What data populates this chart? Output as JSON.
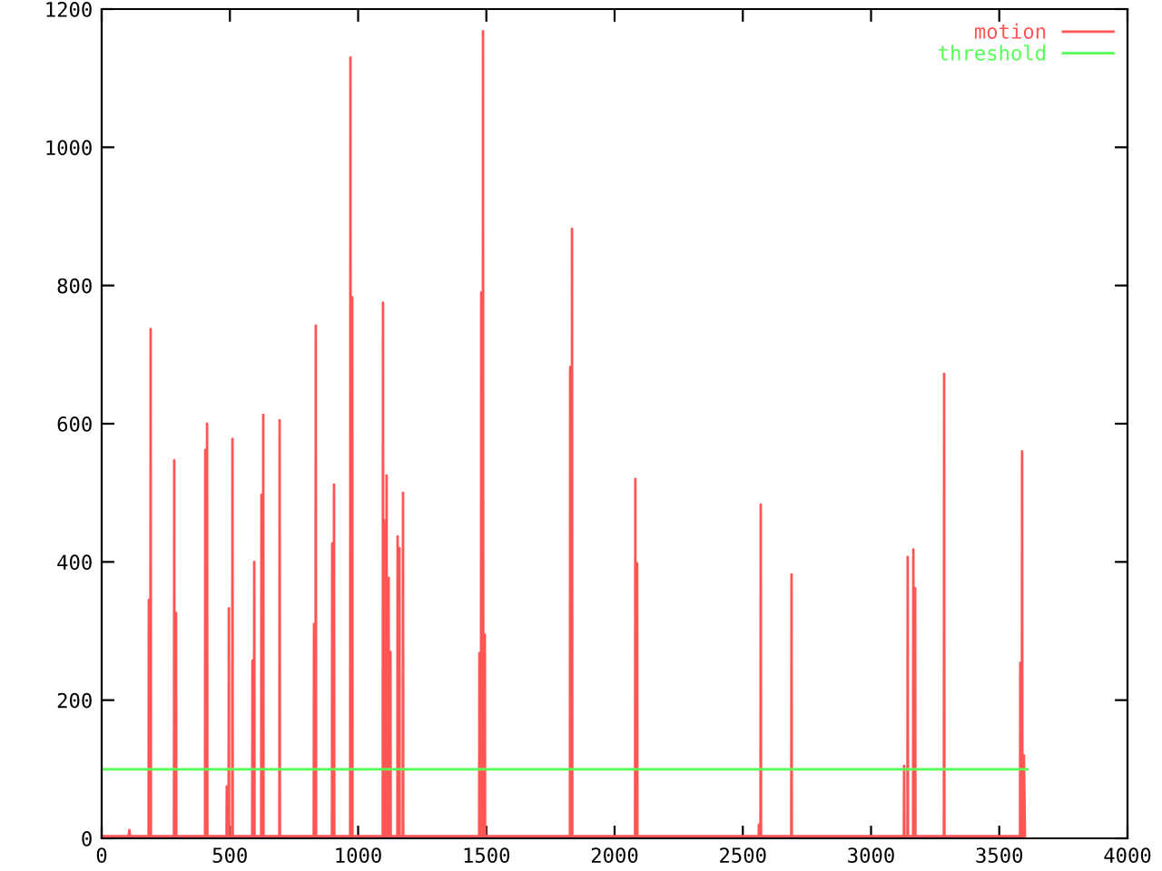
{
  "chart_data": {
    "type": "line",
    "xlim": [
      0,
      4000
    ],
    "ylim": [
      0,
      1200
    ],
    "xticks": [
      0,
      500,
      1000,
      1500,
      2000,
      2500,
      3000,
      3500,
      4000
    ],
    "yticks": [
      0,
      200,
      400,
      600,
      800,
      1000,
      1200
    ],
    "grid": false,
    "legend": "top right",
    "marker": "none",
    "line_style": "solid",
    "series": [
      {
        "name": "motion",
        "color": "#ff5555",
        "x": [
          0,
          105,
          108,
          111,
          183,
          184,
          185,
          190,
          191,
          192,
          282,
          283,
          284,
          289,
          290,
          291,
          403,
          404,
          405,
          410,
          411,
          412,
          487,
          488,
          489,
          495,
          496,
          497,
          509,
          510,
          511,
          587,
          588,
          589,
          594,
          595,
          596,
          622,
          623,
          624,
          629,
          630,
          631,
          693,
          694,
          695,
          827,
          828,
          829,
          834,
          835,
          836,
          898,
          899,
          900,
          905,
          906,
          907,
          969,
          970,
          971,
          976,
          977,
          978,
          1096,
          1097,
          1098,
          1103,
          1104,
          1105,
          1110,
          1111,
          1112,
          1118,
          1119,
          1120,
          1125,
          1126,
          1127,
          1153,
          1154,
          1155,
          1160,
          1161,
          1162,
          1174,
          1175,
          1176,
          1472,
          1473,
          1474,
          1479,
          1480,
          1481,
          1486,
          1487,
          1488,
          1493,
          1494,
          1495,
          1826,
          1827,
          1828,
          1833,
          1834,
          1835,
          2080,
          2081,
          2082,
          2087,
          2088,
          2089,
          2562,
          2563,
          2564,
          2569,
          2570,
          2571,
          2689,
          2690,
          2691,
          3128,
          3129,
          3130,
          3142,
          3143,
          3144,
          3164,
          3165,
          3166,
          3171,
          3172,
          3173,
          3284,
          3285,
          3286,
          3581,
          3582,
          3583,
          3588,
          3589,
          3590,
          3595,
          3596,
          3600
        ],
        "values": [
          3,
          3,
          12,
          3,
          3,
          345,
          3,
          3,
          737,
          3,
          3,
          547,
          3,
          3,
          326,
          3,
          3,
          562,
          3,
          3,
          600,
          3,
          3,
          75,
          3,
          3,
          333,
          3,
          3,
          578,
          3,
          3,
          257,
          3,
          3,
          400,
          3,
          3,
          497,
          3,
          3,
          613,
          3,
          3,
          605,
          3,
          3,
          310,
          3,
          3,
          742,
          3,
          3,
          427,
          3,
          3,
          512,
          3,
          3,
          1130,
          3,
          3,
          783,
          3,
          3,
          775,
          3,
          3,
          460,
          3,
          3,
          525,
          3,
          3,
          377,
          3,
          3,
          270,
          3,
          3,
          437,
          3,
          3,
          420,
          3,
          3,
          500,
          3,
          3,
          268,
          3,
          3,
          790,
          3,
          3,
          1168,
          3,
          3,
          295,
          3,
          3,
          682,
          3,
          3,
          882,
          3,
          3,
          520,
          3,
          3,
          398,
          3,
          3,
          20,
          3,
          3,
          483,
          3,
          3,
          382,
          3,
          3,
          105,
          3,
          3,
          407,
          3,
          3,
          418,
          3,
          3,
          362,
          3,
          3,
          672,
          3,
          3,
          254,
          3,
          3,
          560,
          3,
          3,
          120,
          3
        ]
      },
      {
        "name": "threshold",
        "color": "#55ff55",
        "x": [
          0,
          3610
        ],
        "values": [
          100,
          100
        ]
      }
    ]
  }
}
